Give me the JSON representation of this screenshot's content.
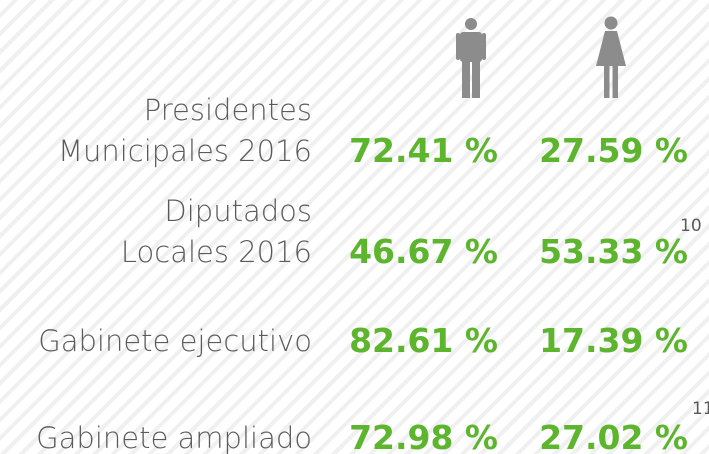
{
  "table": {
    "rows": [
      {
        "label": [
          "Presidentes",
          "Municipales 2016"
        ],
        "men": "72.41 %",
        "women": "27.59 %"
      },
      {
        "label": [
          "Diputados",
          "Locales 2016"
        ],
        "men": "46.67 %",
        "women": "53.33 %",
        "note": "10"
      },
      {
        "label": [
          "Gabinete ejecutivo"
        ],
        "men": "82.61 %",
        "women": "17.39 %"
      },
      {
        "label": [
          "Gabinete ampliado"
        ],
        "men": "72.98 %",
        "women": "27.02 %",
        "note": "11"
      }
    ]
  }
}
